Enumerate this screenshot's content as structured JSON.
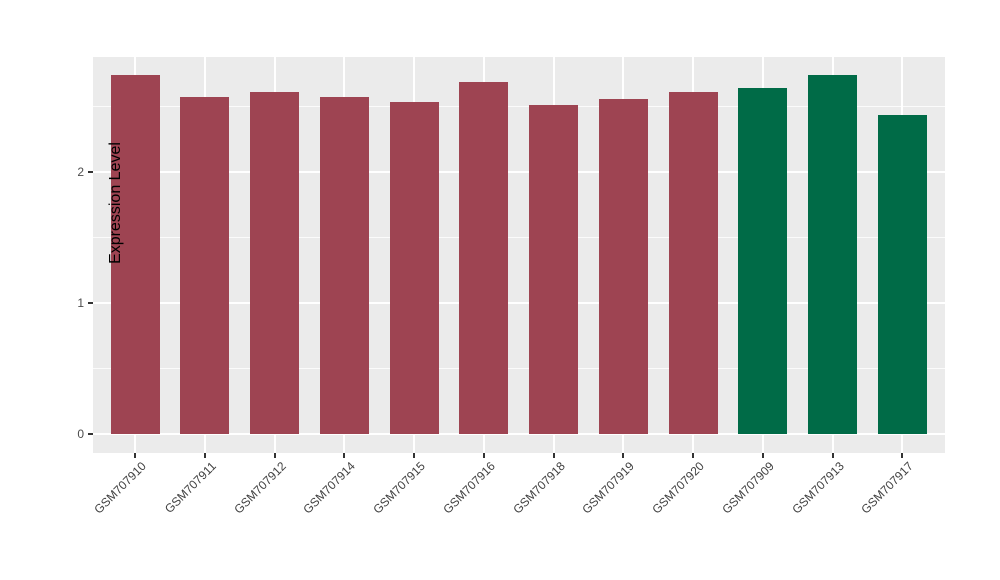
{
  "chart_data": {
    "type": "bar",
    "title": "",
    "xlabel": "",
    "ylabel": "Expression Level",
    "categories": [
      "GSM707910",
      "GSM707911",
      "GSM707912",
      "GSM707914",
      "GSM707915",
      "GSM707916",
      "GSM707918",
      "GSM707919",
      "GSM707920",
      "GSM707909",
      "GSM707913",
      "GSM707917"
    ],
    "values": [
      2.74,
      2.57,
      2.61,
      2.57,
      2.53,
      2.68,
      2.51,
      2.55,
      2.61,
      2.64,
      2.74,
      2.43
    ],
    "bar_colors": [
      "#9E4452",
      "#9E4452",
      "#9E4452",
      "#9E4452",
      "#9E4452",
      "#9E4452",
      "#9E4452",
      "#9E4452",
      "#9E4452",
      "#006B47",
      "#006B47",
      "#006B47"
    ],
    "y_ticks": [
      "0",
      "1",
      "2"
    ],
    "y_tick_values": [
      0,
      1,
      2
    ],
    "y_minor_tick_values": [
      0.5,
      1.5,
      2.5
    ],
    "ylim": [
      0,
      2.87
    ],
    "grid": true,
    "legend": false,
    "panel_bg": "#EBEBEB",
    "grid_color": "#FFFFFF",
    "x_tick_angle": 45
  }
}
